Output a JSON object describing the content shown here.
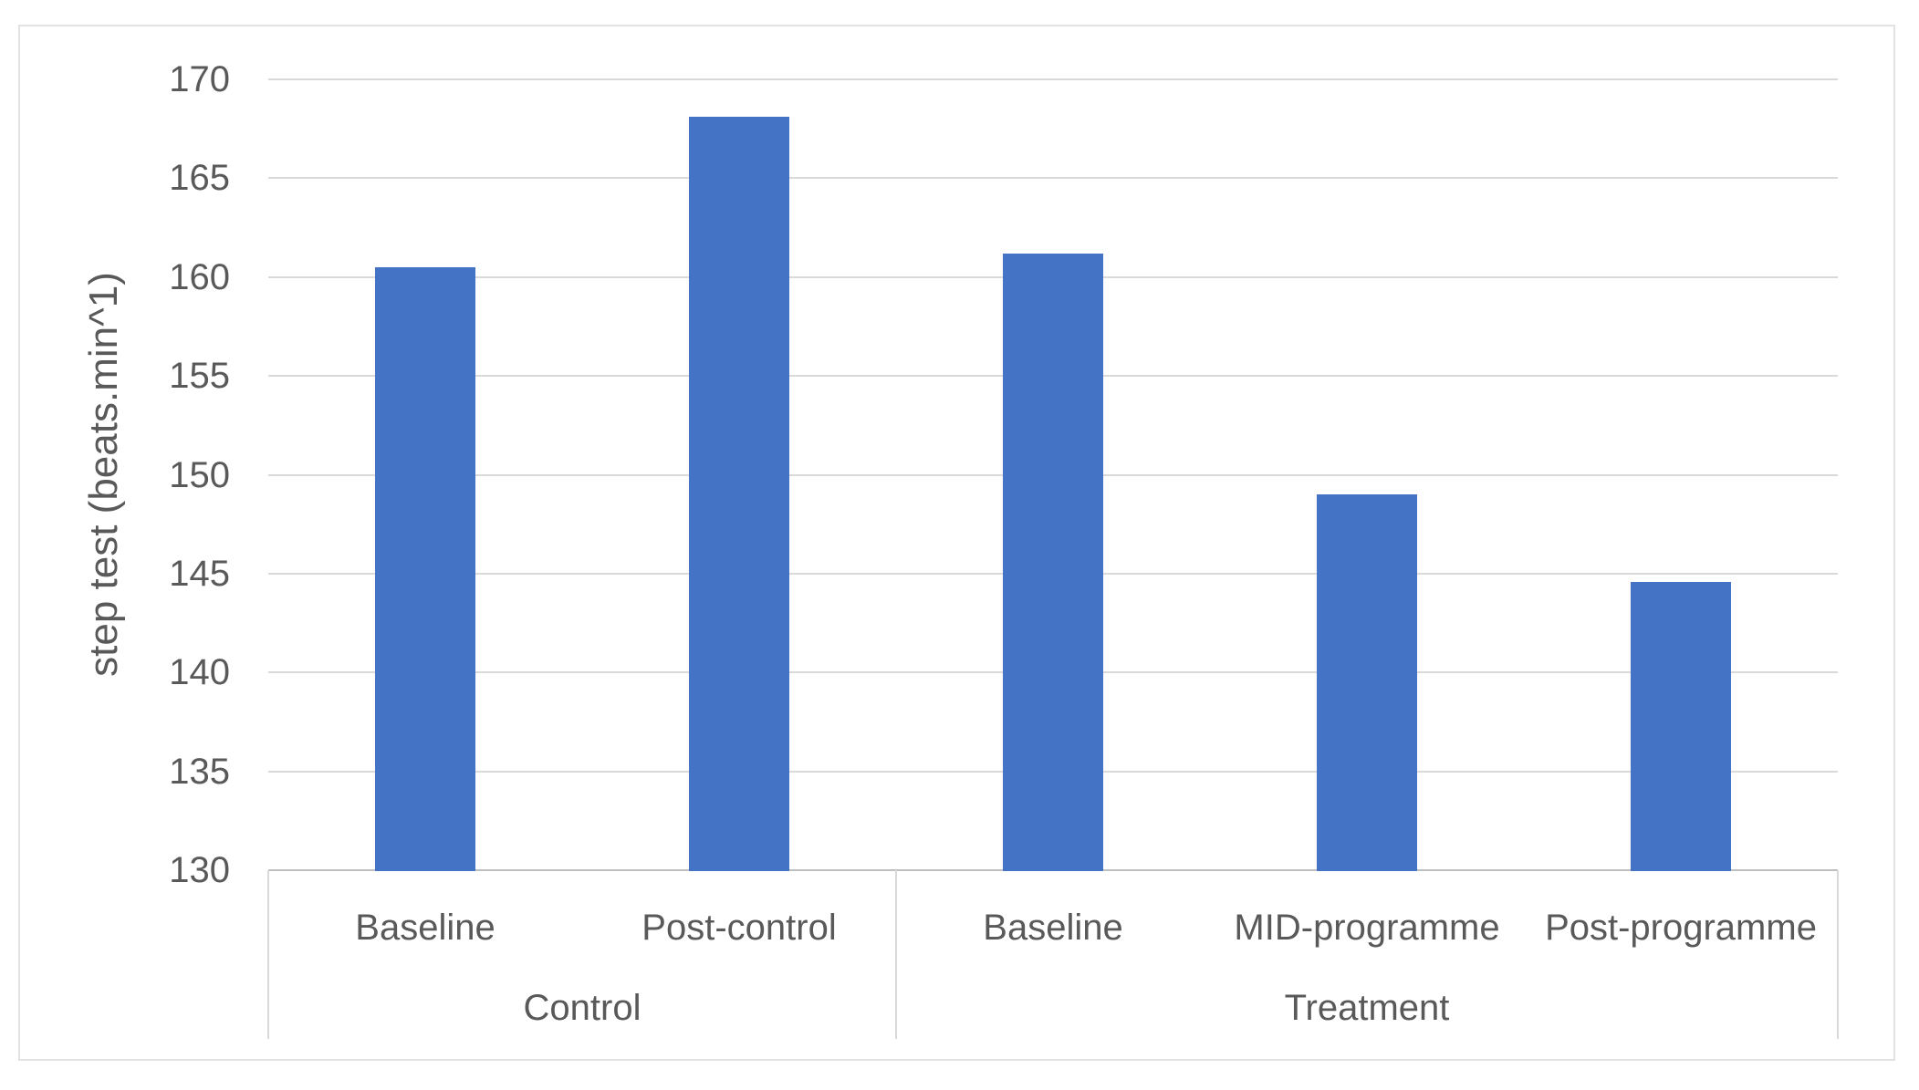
{
  "figure": {
    "background": "#FFFFFF",
    "border_color": "#E2E2E2"
  },
  "chart_data": {
    "type": "bar",
    "title": "",
    "xlabel": "",
    "ylabel": "step test (beats.min^1)",
    "ylim": [
      130,
      170
    ],
    "ytick_step": 5,
    "yticks": [
      130,
      135,
      140,
      145,
      150,
      155,
      160,
      165,
      170
    ],
    "grid": true,
    "legend": false,
    "groups": [
      {
        "label": "Control",
        "categories": [
          "Baseline",
          "Post-control"
        ],
        "values": [
          160.5,
          168.1
        ]
      },
      {
        "label": "Treatment",
        "categories": [
          "Baseline",
          "MID-programme",
          "Post-programme"
        ],
        "values": [
          161.2,
          149.0,
          144.6
        ]
      }
    ],
    "colors": {
      "bar": "#4472C4",
      "gridline": "#D9D9D9",
      "axis_line": "#BFBFBF",
      "separator": "#D9D9D9",
      "text": "#595959"
    }
  }
}
